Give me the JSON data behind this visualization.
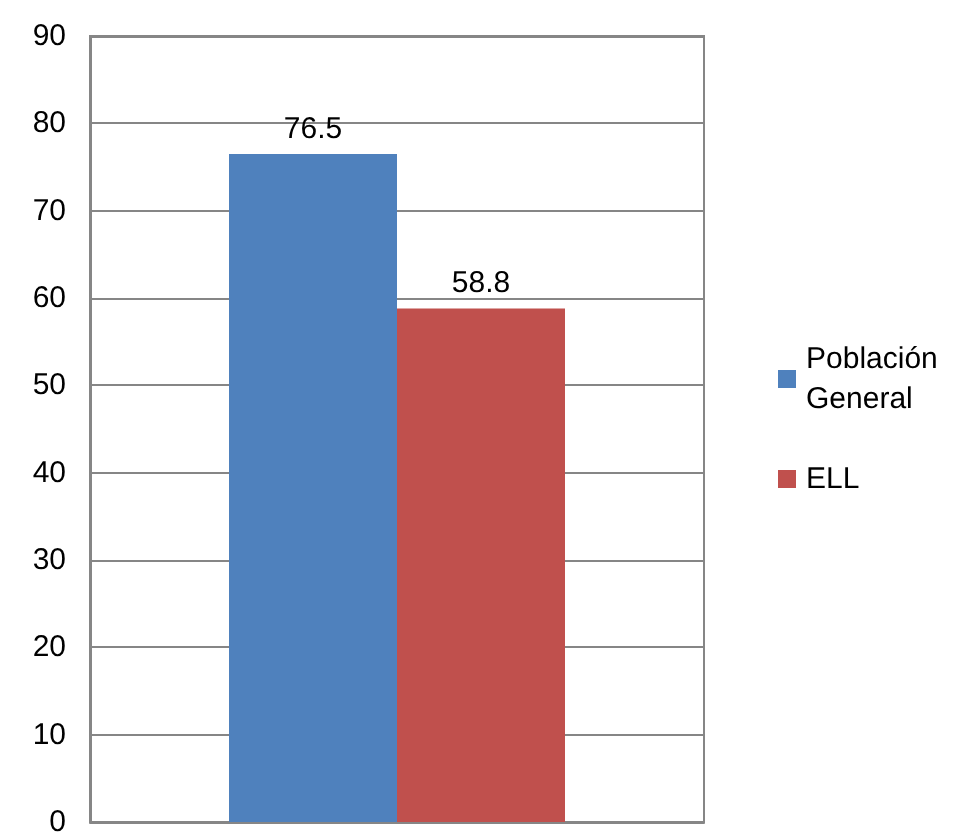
{
  "chart_data": {
    "type": "bar",
    "categories": [
      null
    ],
    "series": [
      {
        "name": "Población General",
        "color": "#4f81bd",
        "values": [
          76.5
        ]
      },
      {
        "name": "ELL",
        "color": "#c0504d",
        "values": [
          58.8
        ]
      }
    ],
    "ylim": [
      0,
      90
    ],
    "yticks": [
      0,
      10,
      20,
      30,
      40,
      50,
      60,
      70,
      80,
      90
    ],
    "grid": "y",
    "legend": "right",
    "data_labels": true
  }
}
